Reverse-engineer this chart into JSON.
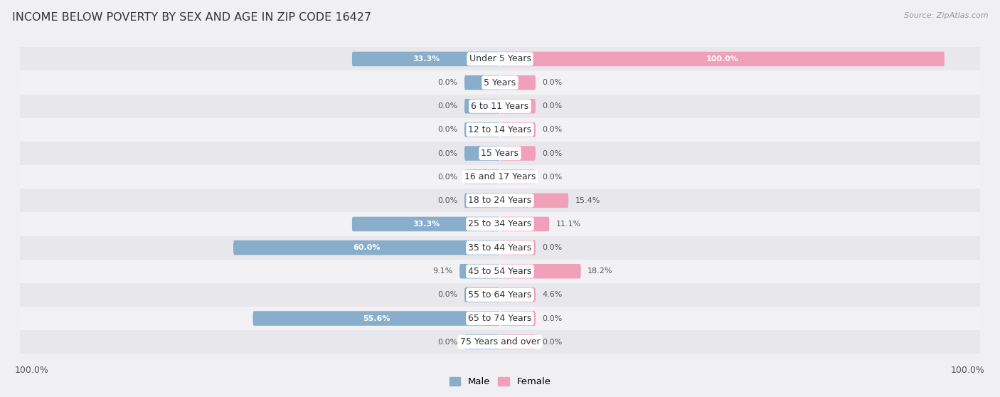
{
  "title": "INCOME BELOW POVERTY BY SEX AND AGE IN ZIP CODE 16427",
  "source": "Source: ZipAtlas.com",
  "categories": [
    "Under 5 Years",
    "5 Years",
    "6 to 11 Years",
    "12 to 14 Years",
    "15 Years",
    "16 and 17 Years",
    "18 to 24 Years",
    "25 to 34 Years",
    "35 to 44 Years",
    "45 to 54 Years",
    "55 to 64 Years",
    "65 to 74 Years",
    "75 Years and over"
  ],
  "male_values": [
    33.3,
    0.0,
    0.0,
    0.0,
    0.0,
    0.0,
    0.0,
    33.3,
    60.0,
    9.1,
    0.0,
    55.6,
    0.0
  ],
  "female_values": [
    100.0,
    0.0,
    0.0,
    0.0,
    0.0,
    0.0,
    15.4,
    11.1,
    0.0,
    18.2,
    4.6,
    0.0,
    0.0
  ],
  "male_color": "#88AECB",
  "female_color": "#F0A0B8",
  "male_label": "Male",
  "female_label": "Female",
  "row_color_even": "#e8e8ec",
  "row_color_odd": "#f2f2f5",
  "title_fontsize": 11.5,
  "axis_max": 100.0,
  "min_bar_val": 8.0,
  "label_fontsize": 8.5,
  "value_fontsize": 8.0,
  "cat_label_fontsize": 9.0
}
